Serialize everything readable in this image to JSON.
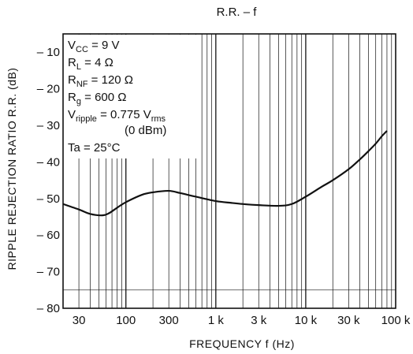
{
  "chart_data": {
    "type": "line",
    "title": "R.R.  –  f",
    "xlabel": "FREQUENCY   f   (Hz)",
    "ylabel": "RIPPLE REJECTION RATIO   R.R.   (dB)",
    "x_scale": "log",
    "xlim": [
      20,
      100000
    ],
    "ylim": [
      -80,
      -5
    ],
    "grid": true,
    "x_ticks": [
      {
        "value": 30,
        "label": "30"
      },
      {
        "value": 100,
        "label": "100"
      },
      {
        "value": 300,
        "label": "300"
      },
      {
        "value": 1000,
        "label": "1 k"
      },
      {
        "value": 3000,
        "label": "3 k"
      },
      {
        "value": 10000,
        "label": "10 k"
      },
      {
        "value": 30000,
        "label": "30 k"
      },
      {
        "value": 100000,
        "label": "100 k"
      }
    ],
    "y_ticks": [
      {
        "value": -10,
        "label": "– 10"
      },
      {
        "value": -20,
        "label": "– 20"
      },
      {
        "value": -30,
        "label": "– 30"
      },
      {
        "value": -40,
        "label": "– 40"
      },
      {
        "value": -50,
        "label": "– 50"
      },
      {
        "value": -60,
        "label": "– 60"
      },
      {
        "value": -70,
        "label": "– 70"
      },
      {
        "value": -80,
        "label": "– 80"
      }
    ],
    "conditions": {
      "vcc": {
        "base": "V",
        "sub": "CC",
        "rest": " = 9 V"
      },
      "rl": {
        "base": "R",
        "sub": "L",
        "rest": " = 4 Ω"
      },
      "rnf": {
        "base": "R",
        "sub": "NF",
        "rest": " = 120 Ω"
      },
      "rg": {
        "base": "R",
        "sub": "g",
        "rest": " = 600 Ω"
      },
      "vripple": {
        "base": "V",
        "sub": "ripple",
        "mid": " = 0.775 V",
        "sub2": "rms"
      },
      "dbm": "(0 dBm)",
      "ta": "Ta = 25°C"
    },
    "series": [
      {
        "x": [
          20,
          30,
          40,
          55,
          65,
          80,
          100,
          150,
          200,
          300,
          400,
          600,
          1000,
          1500,
          2000,
          3000,
          5000,
          7000,
          10000,
          15000,
          20000,
          30000,
          40000,
          50000,
          60000,
          70000,
          80000
        ],
        "y": [
          -51.5,
          -53,
          -54.2,
          -54.6,
          -54,
          -52.5,
          -51,
          -49,
          -48.3,
          -47.9,
          -48.5,
          -49.5,
          -50.7,
          -51.2,
          -51.5,
          -51.8,
          -52,
          -51.5,
          -49.5,
          -46.8,
          -45,
          -42,
          -39.3,
          -37,
          -35,
          -33,
          -31.5
        ]
      }
    ]
  }
}
